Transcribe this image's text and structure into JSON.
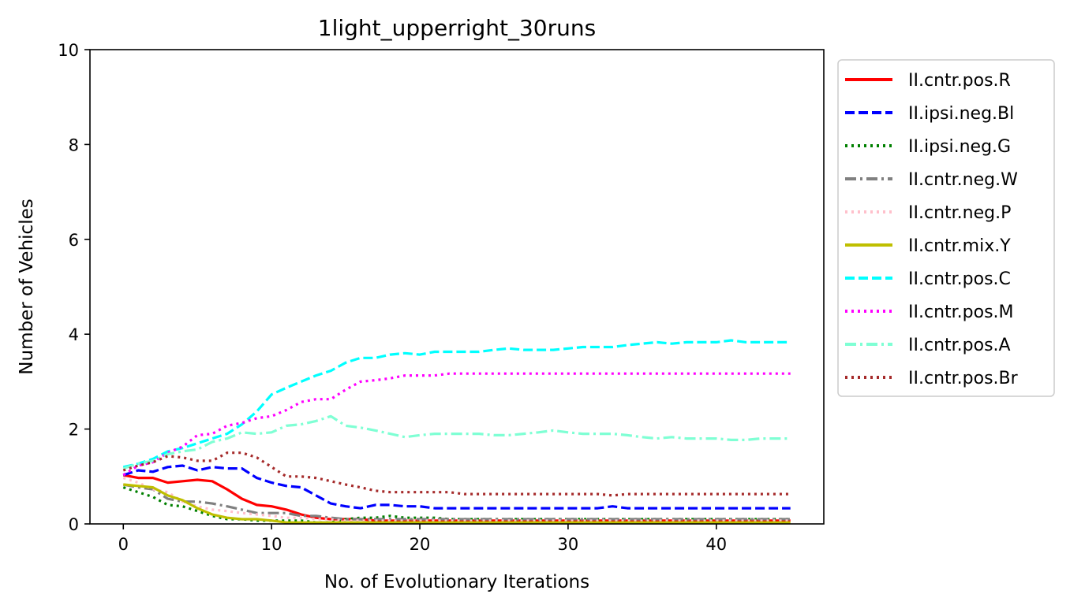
{
  "chart_data": {
    "type": "line",
    "title": "1light_upperright_30runs",
    "xlabel": "No. of Evolutionary Iterations",
    "ylabel": "Number of Vehicles",
    "xlim": [
      -2.25,
      47.25
    ],
    "ylim": [
      0,
      10
    ],
    "xticks": [
      0,
      10,
      20,
      30,
      40
    ],
    "yticks": [
      0,
      2,
      4,
      6,
      8,
      10
    ],
    "grid": false,
    "legend_position": "outside-right",
    "x": [
      0,
      1,
      2,
      3,
      4,
      5,
      6,
      7,
      8,
      9,
      10,
      11,
      12,
      13,
      14,
      15,
      16,
      17,
      18,
      19,
      20,
      21,
      22,
      23,
      24,
      25,
      26,
      27,
      28,
      29,
      30,
      31,
      32,
      33,
      34,
      35,
      36,
      37,
      38,
      39,
      40,
      41,
      42,
      43,
      44,
      45
    ],
    "series": [
      {
        "name": "II.cntr.pos.R",
        "color": "#ff0000",
        "style": "solid",
        "width": 3.2,
        "values": [
          1.03,
          0.97,
          0.97,
          0.87,
          0.9,
          0.93,
          0.9,
          0.73,
          0.53,
          0.4,
          0.37,
          0.3,
          0.2,
          0.13,
          0.1,
          0.1,
          0.1,
          0.07,
          0.07,
          0.07,
          0.07,
          0.07,
          0.07,
          0.07,
          0.07,
          0.07,
          0.07,
          0.07,
          0.07,
          0.07,
          0.07,
          0.07,
          0.07,
          0.07,
          0.07,
          0.07,
          0.07,
          0.07,
          0.07,
          0.07,
          0.07,
          0.07,
          0.07,
          0.07,
          0.07,
          0.07
        ]
      },
      {
        "name": "II.ipsi.neg.Bl",
        "color": "#0000ff",
        "style": "dashed",
        "width": 3.2,
        "values": [
          1.03,
          1.13,
          1.1,
          1.2,
          1.23,
          1.13,
          1.2,
          1.17,
          1.17,
          0.97,
          0.87,
          0.8,
          0.77,
          0.6,
          0.43,
          0.37,
          0.33,
          0.4,
          0.4,
          0.37,
          0.37,
          0.33,
          0.33,
          0.33,
          0.33,
          0.33,
          0.33,
          0.33,
          0.33,
          0.33,
          0.33,
          0.33,
          0.33,
          0.37,
          0.33,
          0.33,
          0.33,
          0.33,
          0.33,
          0.33,
          0.33,
          0.33,
          0.33,
          0.33,
          0.33,
          0.33
        ]
      },
      {
        "name": "II.ipsi.neg.G",
        "color": "#008000",
        "style": "dotted",
        "width": 3.2,
        "values": [
          0.77,
          0.67,
          0.57,
          0.4,
          0.37,
          0.27,
          0.17,
          0.1,
          0.1,
          0.07,
          0.07,
          0.07,
          0.07,
          0.03,
          0.03,
          0.1,
          0.13,
          0.13,
          0.17,
          0.13,
          0.13,
          0.13,
          0.1,
          0.1,
          0.1,
          0.1,
          0.1,
          0.1,
          0.1,
          0.1,
          0.1,
          0.1,
          0.1,
          0.1,
          0.1,
          0.1,
          0.1,
          0.1,
          0.1,
          0.1,
          0.1,
          0.1,
          0.1,
          0.1,
          0.1,
          0.1
        ]
      },
      {
        "name": "II.cntr.neg.W",
        "color": "#808080",
        "style": "dashdot",
        "width": 3.2,
        "values": [
          0.83,
          0.77,
          0.73,
          0.53,
          0.47,
          0.47,
          0.43,
          0.37,
          0.3,
          0.23,
          0.23,
          0.23,
          0.17,
          0.17,
          0.13,
          0.1,
          0.1,
          0.1,
          0.1,
          0.1,
          0.1,
          0.1,
          0.1,
          0.1,
          0.1,
          0.1,
          0.1,
          0.1,
          0.1,
          0.1,
          0.1,
          0.1,
          0.1,
          0.1,
          0.1,
          0.1,
          0.1,
          0.1,
          0.1,
          0.1,
          0.1,
          0.1,
          0.1,
          0.1,
          0.1,
          0.1
        ]
      },
      {
        "name": "II.cntr.neg.P",
        "color": "#ffc0cb",
        "style": "dotted",
        "width": 3.2,
        "values": [
          0.97,
          0.87,
          0.73,
          0.67,
          0.47,
          0.37,
          0.3,
          0.27,
          0.23,
          0.2,
          0.17,
          0.13,
          0.13,
          0.1,
          0.1,
          0.07,
          0.07,
          0.07,
          0.07,
          0.07,
          0.07,
          0.07,
          0.07,
          0.07,
          0.07,
          0.07,
          0.07,
          0.07,
          0.07,
          0.07,
          0.07,
          0.07,
          0.07,
          0.07,
          0.07,
          0.07,
          0.07,
          0.07,
          0.07,
          0.07,
          0.07,
          0.07,
          0.07,
          0.07,
          0.07,
          0.07
        ]
      },
      {
        "name": "II.cntr.mix.Y",
        "color": "#bfbf00",
        "style": "solid",
        "width": 3.2,
        "values": [
          0.83,
          0.8,
          0.77,
          0.6,
          0.5,
          0.33,
          0.2,
          0.13,
          0.1,
          0.1,
          0.07,
          0.03,
          0.03,
          0.03,
          0.03,
          0.03,
          0.03,
          0.03,
          0.03,
          0.03,
          0.03,
          0.03,
          0.03,
          0.03,
          0.03,
          0.03,
          0.03,
          0.03,
          0.03,
          0.03,
          0.03,
          0.03,
          0.03,
          0.03,
          0.03,
          0.03,
          0.03,
          0.03,
          0.03,
          0.03,
          0.03,
          0.03,
          0.03,
          0.03,
          0.03,
          0.03
        ]
      },
      {
        "name": "II.cntr.pos.C",
        "color": "#00ffff",
        "style": "dashed",
        "width": 3.2,
        "values": [
          1.2,
          1.27,
          1.37,
          1.53,
          1.6,
          1.7,
          1.8,
          1.9,
          2.1,
          2.37,
          2.73,
          2.87,
          3.0,
          3.13,
          3.23,
          3.4,
          3.5,
          3.5,
          3.57,
          3.6,
          3.57,
          3.63,
          3.63,
          3.63,
          3.63,
          3.67,
          3.7,
          3.67,
          3.67,
          3.67,
          3.7,
          3.73,
          3.73,
          3.73,
          3.77,
          3.8,
          3.83,
          3.8,
          3.83,
          3.83,
          3.83,
          3.87,
          3.83,
          3.83,
          3.83,
          3.83
        ]
      },
      {
        "name": "II.cntr.pos.M",
        "color": "#ff00ff",
        "style": "dotted",
        "width": 3.2,
        "values": [
          1.03,
          1.23,
          1.3,
          1.5,
          1.63,
          1.87,
          1.9,
          2.07,
          2.13,
          2.23,
          2.27,
          2.4,
          2.57,
          2.63,
          2.63,
          2.83,
          3.0,
          3.03,
          3.07,
          3.13,
          3.13,
          3.13,
          3.17,
          3.17,
          3.17,
          3.17,
          3.17,
          3.17,
          3.17,
          3.17,
          3.17,
          3.17,
          3.17,
          3.17,
          3.17,
          3.17,
          3.17,
          3.17,
          3.17,
          3.17,
          3.17,
          3.17,
          3.17,
          3.17,
          3.17,
          3.17
        ]
      },
      {
        "name": "II.cntr.pos.A",
        "color": "#7fffd4",
        "style": "dashdot",
        "width": 3.2,
        "values": [
          1.17,
          1.27,
          1.33,
          1.47,
          1.53,
          1.57,
          1.73,
          1.8,
          1.93,
          1.9,
          1.93,
          2.07,
          2.1,
          2.17,
          2.27,
          2.07,
          2.03,
          1.97,
          1.9,
          1.83,
          1.87,
          1.9,
          1.9,
          1.9,
          1.9,
          1.87,
          1.87,
          1.9,
          1.93,
          1.97,
          1.93,
          1.9,
          1.9,
          1.9,
          1.87,
          1.83,
          1.8,
          1.83,
          1.8,
          1.8,
          1.8,
          1.77,
          1.77,
          1.8,
          1.8,
          1.8
        ]
      },
      {
        "name": "II.cntr.pos.Br",
        "color": "#a52a2a",
        "style": "dotted",
        "width": 3.2,
        "values": [
          1.13,
          1.23,
          1.3,
          1.43,
          1.4,
          1.33,
          1.33,
          1.5,
          1.5,
          1.4,
          1.2,
          1.0,
          1.0,
          0.97,
          0.9,
          0.83,
          0.77,
          0.7,
          0.67,
          0.67,
          0.67,
          0.67,
          0.67,
          0.63,
          0.63,
          0.63,
          0.63,
          0.63,
          0.63,
          0.63,
          0.63,
          0.63,
          0.63,
          0.6,
          0.63,
          0.63,
          0.63,
          0.63,
          0.63,
          0.63,
          0.63,
          0.63,
          0.63,
          0.63,
          0.63,
          0.63
        ]
      }
    ]
  }
}
